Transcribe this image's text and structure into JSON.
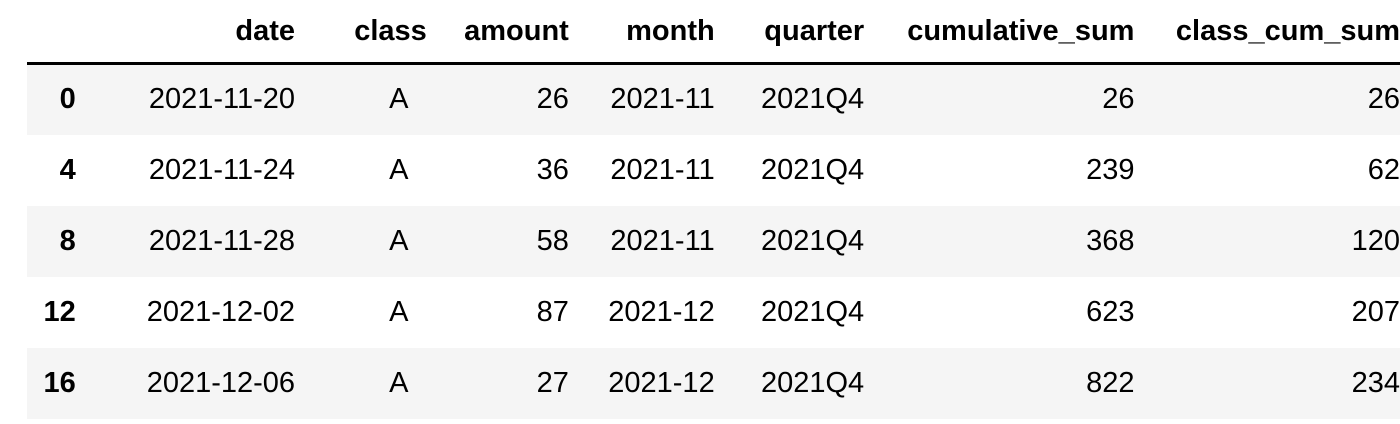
{
  "table": {
    "columns": {
      "index": "",
      "date": "date",
      "class": "class",
      "amount": "amount",
      "month": "month",
      "quarter": "quarter",
      "cumulative_sum": "cumulative_sum",
      "class_cum_sum": "class_cum_sum"
    },
    "rows": [
      {
        "index": "0",
        "date": "2021-11-20",
        "class": "A",
        "amount": "26",
        "month": "2021-11",
        "quarter": "2021Q4",
        "cumulative_sum": "26",
        "class_cum_sum": "26"
      },
      {
        "index": "4",
        "date": "2021-11-24",
        "class": "A",
        "amount": "36",
        "month": "2021-11",
        "quarter": "2021Q4",
        "cumulative_sum": "239",
        "class_cum_sum": "62"
      },
      {
        "index": "8",
        "date": "2021-11-28",
        "class": "A",
        "amount": "58",
        "month": "2021-11",
        "quarter": "2021Q4",
        "cumulative_sum": "368",
        "class_cum_sum": "120"
      },
      {
        "index": "12",
        "date": "2021-12-02",
        "class": "A",
        "amount": "87",
        "month": "2021-12",
        "quarter": "2021Q4",
        "cumulative_sum": "623",
        "class_cum_sum": "207"
      },
      {
        "index": "16",
        "date": "2021-12-06",
        "class": "A",
        "amount": "27",
        "month": "2021-12",
        "quarter": "2021Q4",
        "cumulative_sum": "822",
        "class_cum_sum": "234"
      }
    ]
  },
  "colors": {
    "stripe": "#f5f5f5",
    "header_rule": "#000000",
    "text": "#000000"
  }
}
